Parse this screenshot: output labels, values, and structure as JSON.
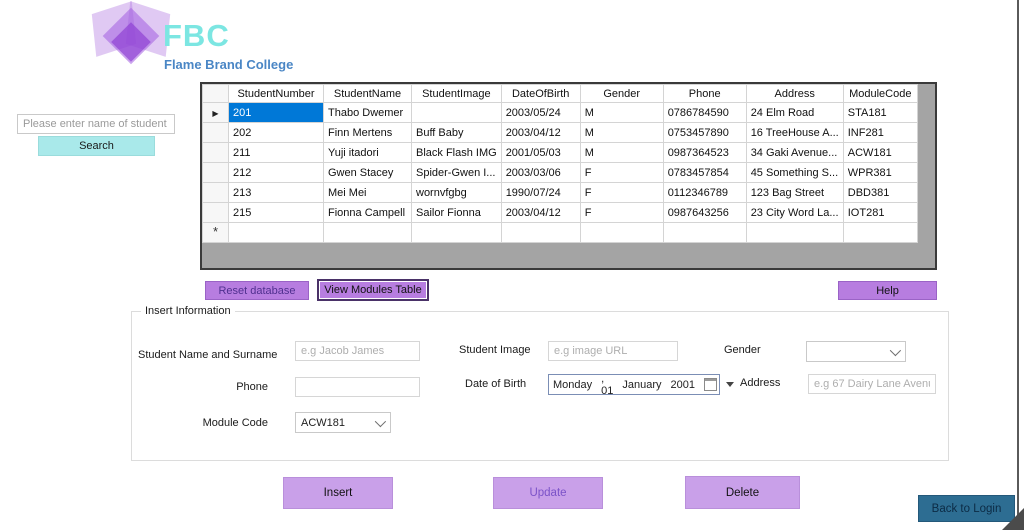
{
  "logo": {
    "acronym": "FBC",
    "college_name": "Flame Brand College"
  },
  "search": {
    "placeholder": "Please enter name of student",
    "button_label": "Search"
  },
  "grid": {
    "columns": [
      "StudentNumber",
      "StudentName",
      "StudentImage",
      "DateOfBirth",
      "Gender",
      "Phone",
      "Address",
      "ModuleCode"
    ],
    "rows": [
      [
        "201",
        "Thabo Dwemer",
        "",
        "2003/05/24",
        "M",
        "0786784590",
        "24 Elm Road",
        "STA181"
      ],
      [
        "202",
        "Finn Mertens",
        "Buff Baby",
        "2003/04/12",
        "M",
        "0753457890",
        "16 TreeHouse A...",
        "INF281"
      ],
      [
        "211",
        "Yuji itadori",
        "Black Flash IMG",
        "2001/05/03",
        "M",
        "0987364523",
        "34 Gaki Avenue...",
        "ACW181"
      ],
      [
        "212",
        "Gwen Stacey",
        "Spider-Gwen I...",
        "2003/03/06",
        "F",
        "0783457854",
        "45 Something S...",
        "WPR381"
      ],
      [
        "213",
        "Mei Mei",
        "wornvfgbg",
        "1990/07/24",
        "F",
        "0112346789",
        "123 Bag Street",
        "DBD381"
      ],
      [
        "215",
        "Fionna Campell",
        "Sailor Fionna",
        "2003/04/12",
        "F",
        "0987643256",
        "23 City Word La...",
        "IOT281"
      ]
    ],
    "selected_cell": {
      "row": 0,
      "col": 0
    },
    "current_row_marker": "▶",
    "new_row_marker": "*"
  },
  "toolbar": {
    "reset_label": "Reset database",
    "view_modules_label": "View Modules Table",
    "help_label": "Help"
  },
  "form": {
    "group_title": "Insert Information",
    "name_label": "Student Name and Surname",
    "name_placeholder": "e.g Jacob James",
    "image_label": "Student Image",
    "image_placeholder": "e.g image URL",
    "gender_label": "Gender",
    "gender_value": "",
    "phone_label": "Phone",
    "dob_label": "Date of Birth",
    "dob": {
      "weekday": "Monday",
      "day": ", 01",
      "month": "January",
      "year": "2001"
    },
    "address_label": "Address",
    "address_placeholder": "e.g 67 Dairy Lane Avenue",
    "module_label": "Module Code",
    "module_value": "ACW181"
  },
  "actions": {
    "insert_label": "Insert",
    "update_label": "Update",
    "delete_label": "Delete",
    "back_label": "Back to Login"
  },
  "colors": {
    "accent_purple": "#b77de0",
    "accent_purple_light": "#c9a0e9",
    "accent_cyan": "#a9e9ea",
    "logo_cyan": "#7ce6e2",
    "logo_blue": "#4a86c5",
    "selection_blue": "#0078d7",
    "back_button_teal": "#2d6d92",
    "grid_filler_gray": "#a4a4a4"
  }
}
